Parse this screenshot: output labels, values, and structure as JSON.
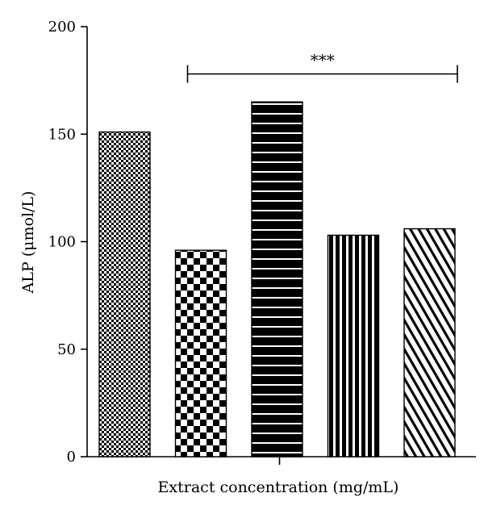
{
  "chart_data": {
    "type": "bar",
    "title": "",
    "xlabel": "Extract concentration (mg/mL)",
    "ylabel": "ALP (μmol/L)",
    "ylim": [
      0,
      200
    ],
    "yticks": [
      0,
      50,
      100,
      150,
      200
    ],
    "yticks_labels": [
      "0",
      "50",
      "100",
      "150",
      "200"
    ],
    "categories": [
      "",
      "",
      "",
      "",
      ""
    ],
    "values": [
      151,
      96,
      165,
      103,
      106
    ],
    "patterns": [
      "fine-checker",
      "coarse-checker",
      "horizontal-lines",
      "vertical-lines",
      "diagonal-lines"
    ],
    "grid": false,
    "annotation": {
      "text": "***",
      "from_bar": 1,
      "to_bar": 4,
      "y": 178
    },
    "colors": {
      "foreground": "#000000",
      "background": "#ffffff"
    }
  }
}
